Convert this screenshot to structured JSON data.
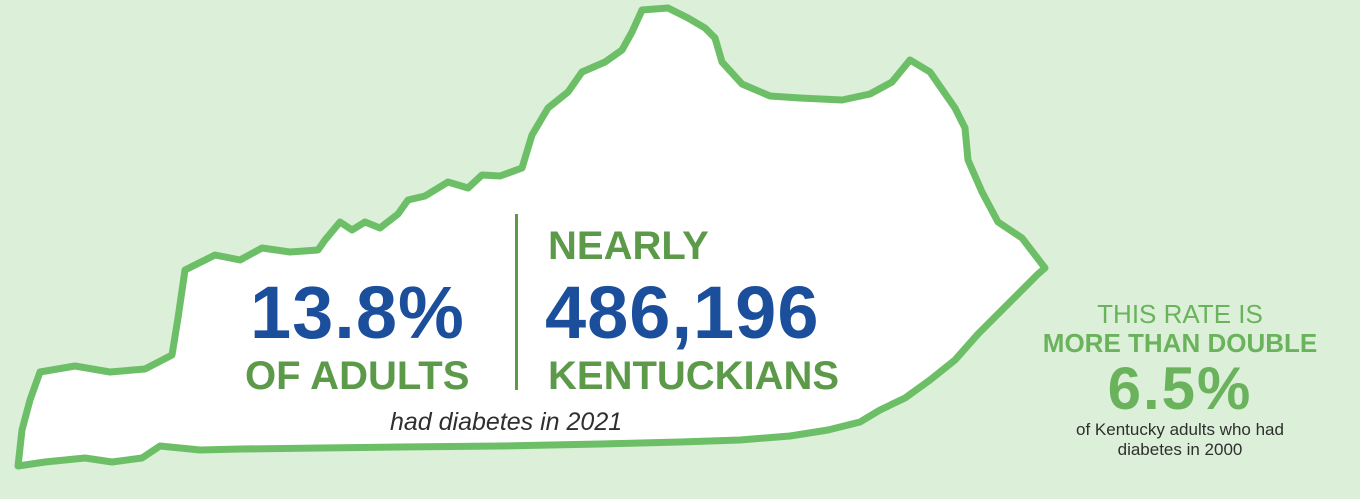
{
  "colors": {
    "background": "#dcefd9",
    "state_outline": "#6dbf67",
    "state_fill": "#ffffff",
    "blue": "#1b4f9c",
    "green": "#5c9a4a",
    "light_green": "#6ab35c"
  },
  "map": {
    "shape": "kentucky-outline"
  },
  "left_stat": {
    "value": "13.8%",
    "label": "OF ADULTS"
  },
  "right_stat": {
    "prefix": "NEARLY",
    "value": "486,196",
    "label": "KENTUCKIANS"
  },
  "caption": "had diabetes in 2021",
  "comparison": {
    "line1": "THIS RATE IS",
    "line2": "MORE THAN DOUBLE",
    "value": "6.5%",
    "note_line1": "of Kentucky adults who had",
    "note_line2": "diabetes in 2000"
  }
}
